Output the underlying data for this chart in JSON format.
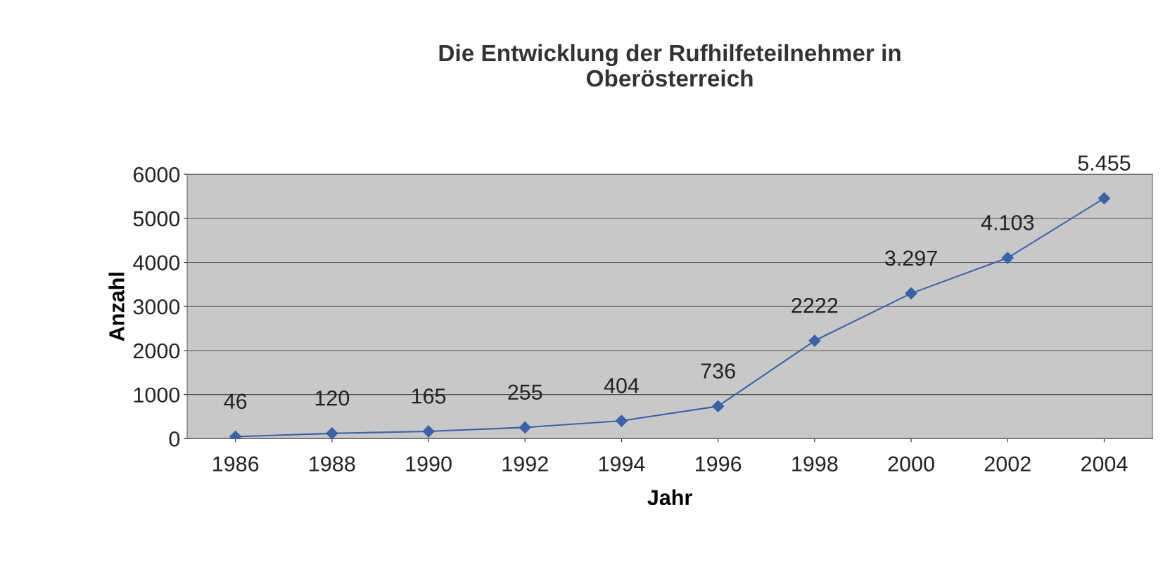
{
  "chart_data": {
    "type": "line",
    "title": "Die Entwicklung der Rufhilfeteilnehmer in\nOberösterreich",
    "xlabel": "Jahr",
    "ylabel": "Anzahl",
    "categories": [
      "1986",
      "1988",
      "1990",
      "1992",
      "1994",
      "1996",
      "1998",
      "2000",
      "2002",
      "2004"
    ],
    "series": [
      {
        "color": "#3b62a8",
        "values": [
          46,
          120,
          165,
          255,
          404,
          736,
          2222,
          3297,
          4103,
          5455
        ],
        "value_labels": [
          "46",
          "120",
          "165",
          "255",
          "404",
          "736",
          "2222",
          "3.297",
          "4.103",
          "5.455"
        ]
      }
    ],
    "ylim": [
      0,
      6000
    ],
    "yticks": [
      0,
      1000,
      2000,
      3000,
      4000,
      5000,
      6000
    ],
    "grid": "y",
    "marker": "diamond",
    "line_style": "solid"
  }
}
